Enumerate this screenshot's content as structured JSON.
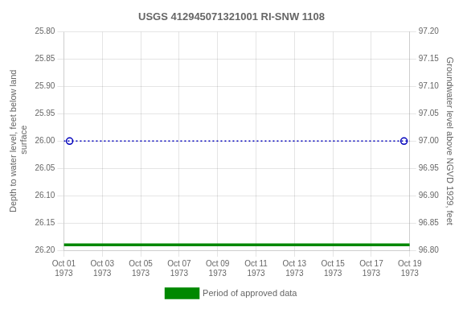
{
  "chart_data": {
    "type": "line",
    "title": "USGS 412945071321001 RI-SNW 1108",
    "y_label": "Depth to water level, feet below land\n surface",
    "y2_label": "Groundwater level above NGVD 1929, feet",
    "xlim": [
      0,
      18
    ],
    "xticks": [
      {
        "value": 0,
        "label": "Oct 01\n1973"
      },
      {
        "value": 2,
        "label": "Oct 03\n1973"
      },
      {
        "value": 4,
        "label": "Oct 05\n1973"
      },
      {
        "value": 6,
        "label": "Oct 07\n1973"
      },
      {
        "value": 8,
        "label": "Oct 09\n1973"
      },
      {
        "value": 10,
        "label": "Oct 11\n1973"
      },
      {
        "value": 12,
        "label": "Oct 13\n1973"
      },
      {
        "value": 14,
        "label": "Oct 15\n1973"
      },
      {
        "value": 16,
        "label": "Oct 17\n1973"
      },
      {
        "value": 18,
        "label": "Oct 19\n1973"
      }
    ],
    "ylim": [
      26.2,
      25.8
    ],
    "yticks": [
      {
        "value": 25.8,
        "label": "25.80"
      },
      25.85,
      {
        "value": 25.9,
        "label": "25.90"
      },
      25.95,
      {
        "value": 26.0,
        "label": "26.00"
      },
      26.05,
      {
        "value": 26.1,
        "label": "26.10"
      },
      26.15,
      {
        "value": 26.2,
        "label": "26.20"
      }
    ],
    "y2lim": [
      96.8,
      97.2
    ],
    "y2ticks": [
      {
        "value": 97.2,
        "label": "97.20"
      },
      97.15,
      {
        "value": 97.1,
        "label": "97.10"
      },
      97.05,
      {
        "value": 97.0,
        "label": "97.00"
      },
      96.95,
      {
        "value": 96.9,
        "label": "96.90"
      },
      96.85,
      {
        "value": 96.8,
        "label": "96.80"
      }
    ],
    "grid": true,
    "legend": "bottom",
    "series": [
      {
        "x": [
          0,
          18
        ],
        "values": [
          26.0,
          26.0
        ],
        "color": "#0000bb",
        "line_style": "dotted"
      },
      {
        "type": "scatter",
        "x": [
          0.3,
          17.7
        ],
        "values": [
          26.0,
          26.0
        ],
        "color": "#0000bb",
        "marker": "open_circle"
      },
      {
        "name": "Period of approved data",
        "x": [
          0,
          18
        ],
        "values": [
          26.19,
          26.19
        ],
        "color": "#008800",
        "line_style": "solid"
      }
    ]
  }
}
